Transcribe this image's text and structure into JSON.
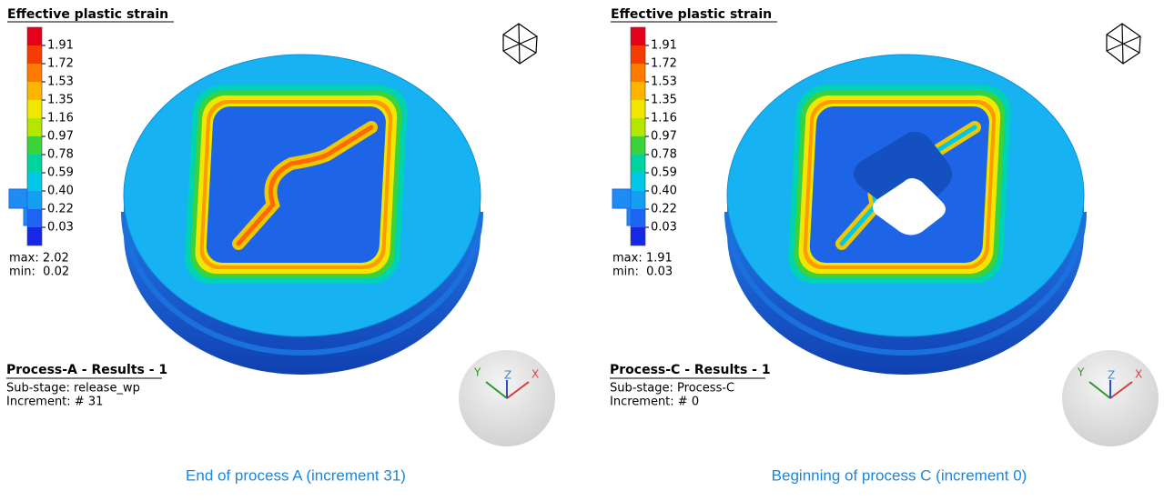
{
  "panels": [
    {
      "legend_title": "Effective plastic strain",
      "scale_labels": [
        "1.91",
        "1.72",
        "1.53",
        "1.35",
        "1.16",
        "0.97",
        "0.78",
        "0.59",
        "0.40",
        "0.22",
        "0.03"
      ],
      "max": "max: 2.02",
      "min": "min:  0.02",
      "process_title": "Process-A - Results - 1",
      "sub_stage": "Sub-stage: release_wp",
      "increment": "Increment: # 31",
      "axes": {
        "x": "X",
        "y": "Y",
        "z": "Z"
      },
      "caption": "End of process A (increment 31)"
    },
    {
      "legend_title": "Effective plastic strain",
      "scale_labels": [
        "1.91",
        "1.72",
        "1.53",
        "1.35",
        "1.16",
        "0.97",
        "0.78",
        "0.59",
        "0.40",
        "0.22",
        "0.03"
      ],
      "max": "max: 1.91",
      "min": "min:  0.03",
      "process_title": "Process-C - Results - 1",
      "sub_stage": "Sub-stage: Process-C",
      "increment": "Increment: # 0",
      "axes": {
        "x": "X",
        "y": "Y",
        "z": "Z"
      },
      "caption": "Beginning of process C (increment 0)"
    }
  ]
}
